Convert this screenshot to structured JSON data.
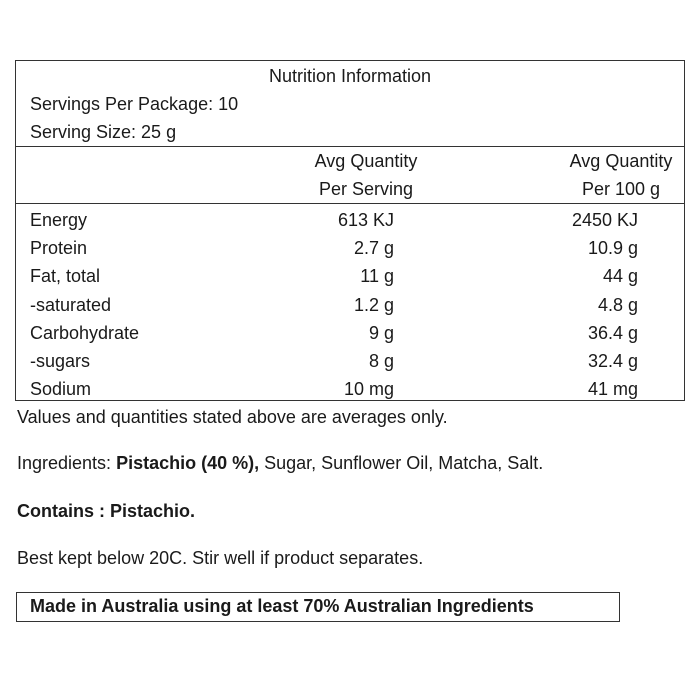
{
  "panel": {
    "title": "Nutrition Information",
    "servings_per_package": "Servings Per Package: 10",
    "serving_size": "Serving Size: 25 g",
    "columns": [
      {
        "line1": "Avg Quantity",
        "line2": "Per Serving"
      },
      {
        "line1": "Avg Quantity",
        "line2": "Per 100 g"
      }
    ],
    "rows": [
      {
        "name": "Energy",
        "per_serving": "613 KJ",
        "per_100g": "2450 KJ"
      },
      {
        "name": "Protein",
        "per_serving": "2.7 g",
        "per_100g": "10.9 g"
      },
      {
        "name": "Fat, total",
        "per_serving": "11 g",
        "per_100g": "44 g"
      },
      {
        "name": "-saturated",
        "per_serving": "1.2 g",
        "per_100g": "4.8 g"
      },
      {
        "name": "Carbohydrate",
        "per_serving": "9 g",
        "per_100g": "36.4 g"
      },
      {
        "name": "-sugars",
        "per_serving": "8 g",
        "per_100g": "32.4 g"
      },
      {
        "name": "Sodium",
        "per_serving": "10 mg",
        "per_100g": "41 mg"
      }
    ]
  },
  "notes": {
    "averages": "Values and quantities stated above are averages only.",
    "ingredients_label": "Ingredients: ",
    "ingredients_bold": "Pistachio (40 %),",
    "ingredients_rest": " Sugar, Sunflower Oil, Matcha, Salt.",
    "contains": "Contains : Pistachio.",
    "storage": "Best kept below 20C. Stir well if product separates.",
    "made_in": "Made in Australia using at least 70% Australian Ingredients"
  }
}
